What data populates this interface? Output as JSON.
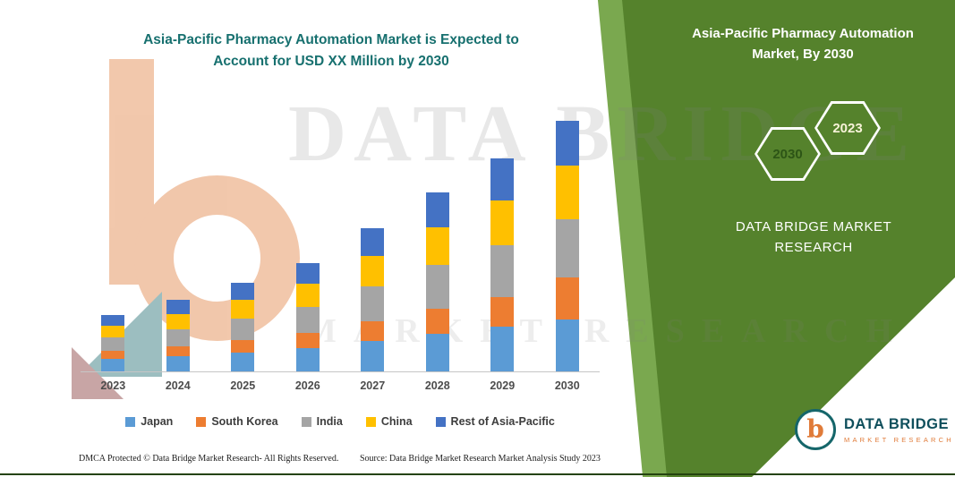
{
  "header": {
    "title_line1": "Asia-Pacific Pharmacy Automation Market is Expected to",
    "title_line2": "Account for USD XX Million by 2030"
  },
  "side_panel": {
    "title": "Asia-Pacific Pharmacy Automation Market, By 2030",
    "hexagons": [
      {
        "label": "2030"
      },
      {
        "label": "2023"
      }
    ],
    "brand_line1": "DATA BRIDGE MARKET",
    "brand_line2": "RESEARCH",
    "panel_color": "#55822c"
  },
  "watermark": {
    "line1": "DATA BRIDGE",
    "line2": "MARKET RESEARCH"
  },
  "chart_data": {
    "type": "bar",
    "stacked": true,
    "title": "Asia-Pacific Pharmacy Automation Market is Expected to Account for USD XX Million by 2030",
    "xlabel": "",
    "ylabel": "",
    "values_unit": "USD Million (amounts masked as XX; heights are relative estimates)",
    "ylim": [
      0,
      300
    ],
    "grid": false,
    "legend_position": "bottom",
    "categories": [
      "2023",
      "2024",
      "2025",
      "2026",
      "2027",
      "2028",
      "2029",
      "2030"
    ],
    "series": [
      {
        "name": "Japan",
        "color": "#5B9BD5",
        "values": [
          14,
          17,
          21,
          26,
          34,
          42,
          50,
          58
        ]
      },
      {
        "name": "South Korea",
        "color": "#ED7D31",
        "values": [
          9,
          11,
          14,
          17,
          22,
          28,
          33,
          47
        ]
      },
      {
        "name": "India",
        "color": "#A5A5A5",
        "values": [
          15,
          19,
          24,
          29,
          39,
          49,
          58,
          65
        ]
      },
      {
        "name": "China",
        "color": "#FFC000",
        "values": [
          13,
          17,
          21,
          26,
          34,
          42,
          50,
          60
        ]
      },
      {
        "name": "Rest of Asia-Pacific",
        "color": "#4472C4",
        "values": [
          12,
          16,
          19,
          23,
          31,
          39,
          47,
          50
        ]
      }
    ]
  },
  "footer": {
    "dmca": "DMCA Protected © Data Bridge Market Research-  All Rights Reserved.",
    "source": "Source: Data Bridge Market Research  Market Analysis Study 2023"
  },
  "logo": {
    "name": "DATA BRIDGE",
    "sub": "MARKET RESEARCH"
  }
}
